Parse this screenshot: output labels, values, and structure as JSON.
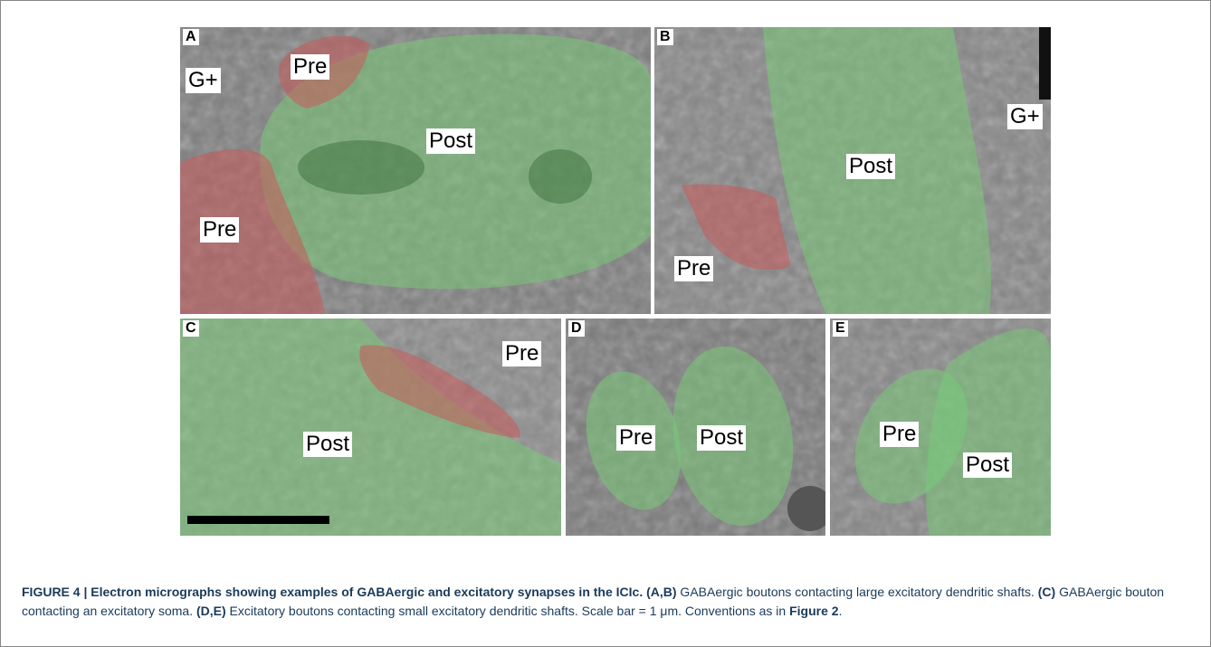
{
  "figure": {
    "panels": [
      {
        "letter": "A",
        "labels": [
          "G+",
          "Pre",
          "Post",
          "Pre"
        ]
      },
      {
        "letter": "B",
        "labels": [
          "Post",
          "G+",
          "Pre"
        ]
      },
      {
        "letter": "C",
        "labels": [
          "Pre",
          "Post"
        ]
      },
      {
        "letter": "D",
        "labels": [
          "Pre",
          "Post"
        ]
      },
      {
        "letter": "E",
        "labels": [
          "Pre",
          "Post"
        ]
      }
    ],
    "caption": [
      {
        "text": "FIGURE 4 | Electron micrographs showing examples of GABAergic and excitatory synapses in the ICIc.",
        "bold": true
      },
      {
        "text": " (A,B)",
        "bold": true
      },
      {
        "text": " GABAergic boutons contacting large excitatory dendritic shafts.",
        "bold": false
      },
      {
        "text": " (C)",
        "bold": true
      },
      {
        "text": " GABAergic bouton contacting an excitatory soma.",
        "bold": false
      },
      {
        "text": " (D,E)",
        "bold": true
      },
      {
        "text": " Excitatory boutons contacting small excitatory dendritic shafts. Scale bar = 1 μm. Conventions as in",
        "bold": false
      },
      {
        "text": " Figure 2",
        "bold": true
      },
      {
        "text": ".",
        "bold": false
      }
    ]
  }
}
